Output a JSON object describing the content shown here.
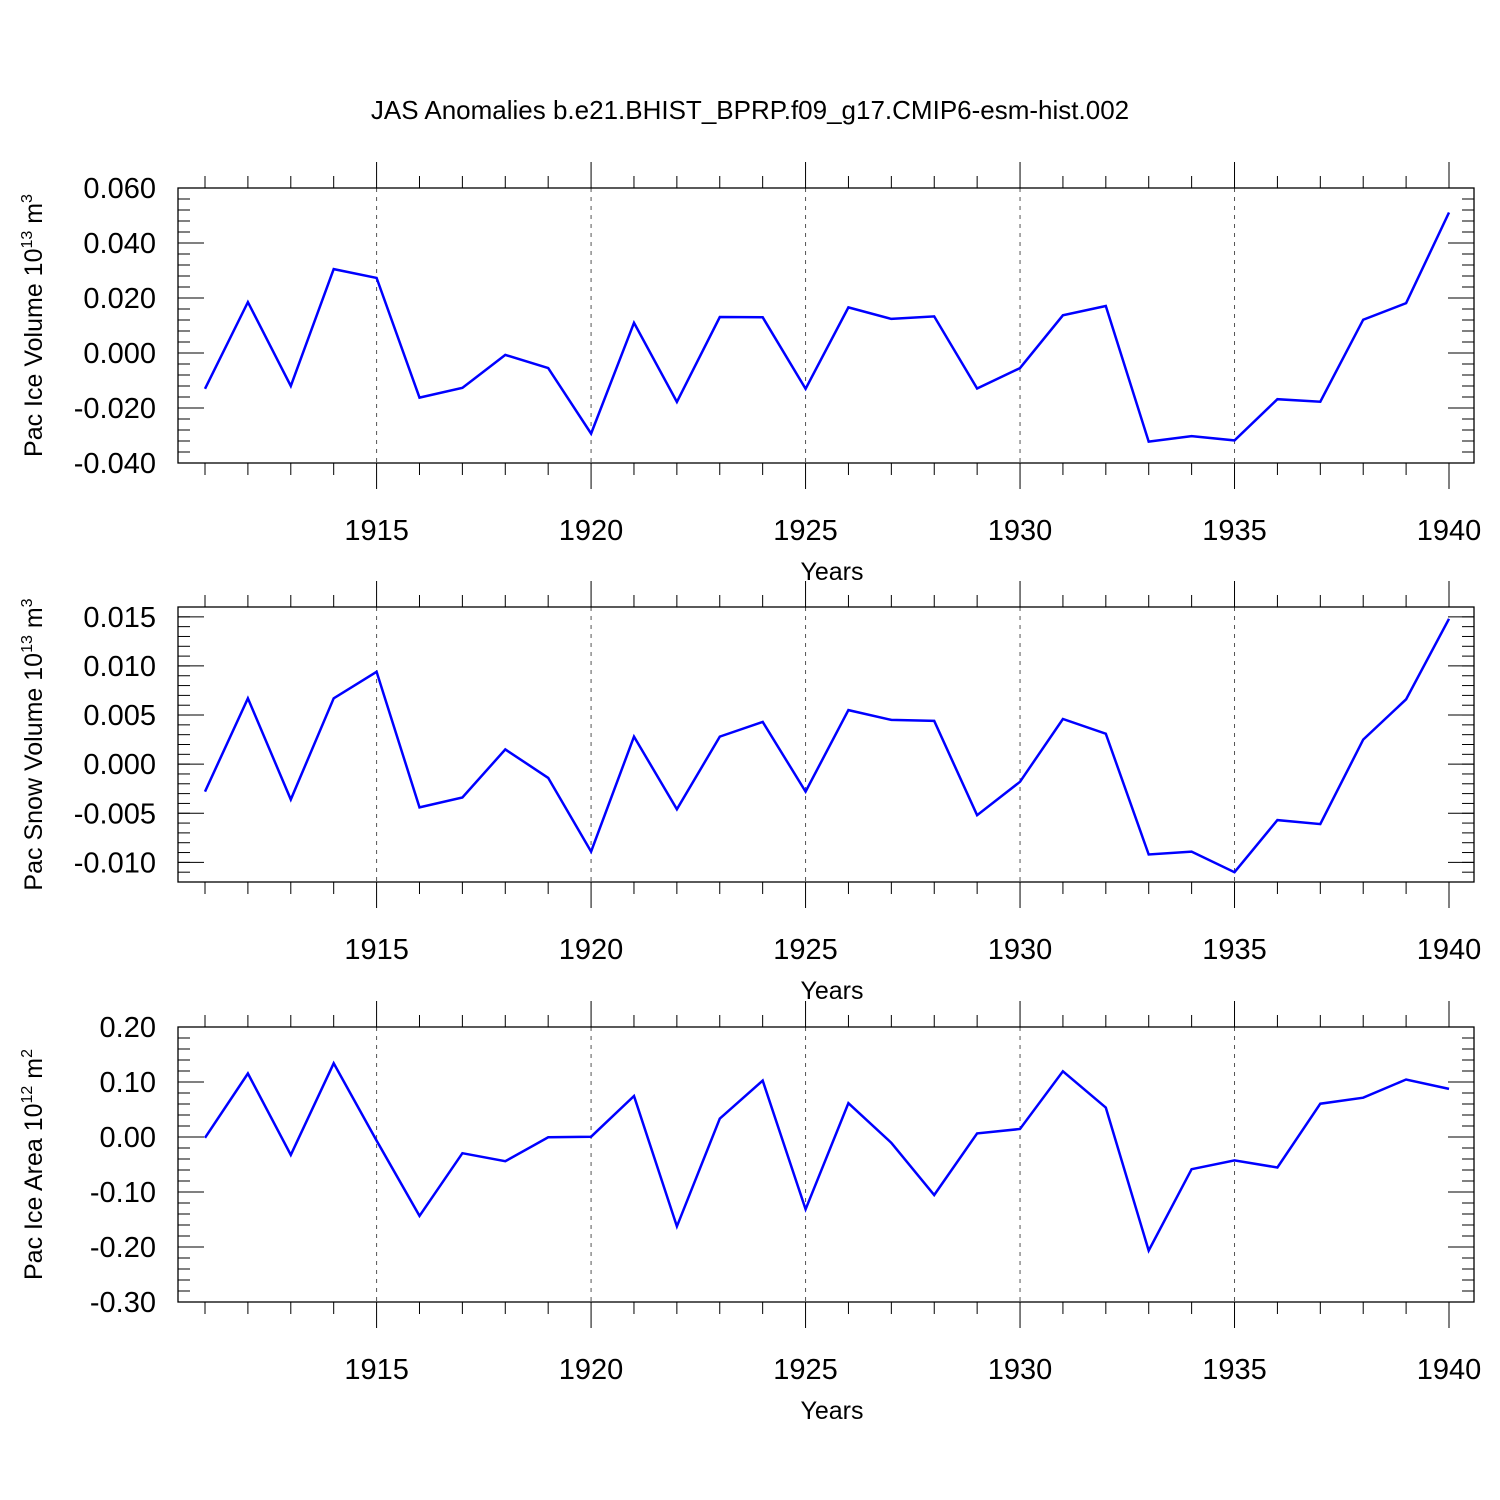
{
  "title": "JAS Anomalies b.e21.BHIST_BPRP.f09_g17.CMIP6-esm-hist.002",
  "colors": {
    "series": "#0000ff",
    "axis": "#000000",
    "grid": "#555555"
  },
  "chart_data": [
    {
      "type": "line",
      "ylabel": "Pac Ice Volume 10",
      "ylabel_exp": "13",
      "ylabel_unit": " m",
      "ylabel_unit_exp": "3",
      "xlabel": "Years",
      "xlim": [
        1911,
        1940
      ],
      "ylim": [
        -0.04,
        0.06
      ],
      "yticks": [
        -0.04,
        -0.02,
        0.0,
        0.02,
        0.04,
        0.06
      ],
      "yticklabels": [
        "-0.040",
        "-0.020",
        "0.000",
        "0.020",
        "0.040",
        "0.060"
      ],
      "yminor_step": 0.004,
      "xticks": [
        1915,
        1920,
        1925,
        1930,
        1935,
        1940
      ],
      "xticklabels": [
        "1915",
        "1920",
        "1925",
        "1930",
        "1935",
        "1940"
      ],
      "gridlines_x": [
        1915,
        1920,
        1925,
        1930,
        1935
      ],
      "x": [
        1911,
        1912,
        1913,
        1914,
        1915,
        1916,
        1917,
        1918,
        1919,
        1920,
        1921,
        1922,
        1923,
        1924,
        1925,
        1926,
        1927,
        1928,
        1929,
        1930,
        1931,
        1932,
        1933,
        1934,
        1935,
        1936,
        1937,
        1938,
        1939,
        1940
      ],
      "values": [
        -0.013,
        0.0185,
        -0.012,
        0.0305,
        0.0273,
        -0.0162,
        -0.0127,
        -0.0007,
        -0.0055,
        -0.0293,
        0.011,
        -0.0178,
        0.0131,
        0.013,
        -0.013,
        0.0166,
        0.0124,
        0.0133,
        -0.0129,
        -0.0055,
        0.0137,
        0.0171,
        -0.0322,
        -0.0302,
        -0.0318,
        -0.0168,
        -0.0177,
        0.0121,
        0.0181,
        0.0511
      ]
    },
    {
      "type": "line",
      "ylabel": "Pac Snow Volume 10",
      "ylabel_exp": "13",
      "ylabel_unit": " m",
      "ylabel_unit_exp": "3",
      "xlabel": "Years",
      "xlim": [
        1911,
        1940
      ],
      "ylim": [
        -0.012,
        0.016
      ],
      "yticks": [
        -0.01,
        -0.005,
        0.0,
        0.005,
        0.01,
        0.015
      ],
      "yticklabels": [
        "-0.010",
        "-0.005",
        "0.000",
        "0.005",
        "0.010",
        "0.015"
      ],
      "yminor_step": 0.001,
      "xticks": [
        1915,
        1920,
        1925,
        1930,
        1935,
        1940
      ],
      "xticklabels": [
        "1915",
        "1920",
        "1925",
        "1930",
        "1935",
        "1940"
      ],
      "gridlines_x": [
        1915,
        1920,
        1925,
        1930,
        1935
      ],
      "x": [
        1911,
        1912,
        1913,
        1914,
        1915,
        1916,
        1917,
        1918,
        1919,
        1920,
        1921,
        1922,
        1923,
        1924,
        1925,
        1926,
        1927,
        1928,
        1929,
        1930,
        1931,
        1932,
        1933,
        1934,
        1935,
        1936,
        1937,
        1938,
        1939,
        1940
      ],
      "values": [
        -0.0028,
        0.0067,
        -0.0036,
        0.0067,
        0.0094,
        -0.0044,
        -0.0034,
        0.0015,
        -0.0014,
        -0.0089,
        0.0028,
        -0.0046,
        0.0028,
        0.0043,
        -0.0028,
        0.0055,
        0.0045,
        0.0044,
        -0.0052,
        -0.0018,
        0.0046,
        0.0031,
        -0.0092,
        -0.0089,
        -0.011,
        -0.0057,
        -0.0061,
        0.0025,
        0.0066,
        0.0148
      ]
    },
    {
      "type": "line",
      "ylabel": "Pac Ice Area 10",
      "ylabel_exp": "12",
      "ylabel_unit": " m",
      "ylabel_unit_exp": "2",
      "xlabel": "Years",
      "xlim": [
        1911,
        1940
      ],
      "ylim": [
        -0.3,
        0.2
      ],
      "yticks": [
        -0.3,
        -0.2,
        -0.1,
        0.0,
        0.1,
        0.2
      ],
      "yticklabels": [
        "-0.30",
        "-0.20",
        "-0.10",
        "0.00",
        "0.10",
        "0.20"
      ],
      "yminor_step": 0.02,
      "xticks": [
        1915,
        1920,
        1925,
        1930,
        1935,
        1940
      ],
      "xticklabels": [
        "1915",
        "1920",
        "1925",
        "1930",
        "1935",
        "1940"
      ],
      "gridlines_x": [
        1915,
        1920,
        1925,
        1930,
        1935
      ],
      "x": [
        1911,
        1912,
        1913,
        1914,
        1915,
        1916,
        1917,
        1918,
        1919,
        1920,
        1921,
        1922,
        1923,
        1924,
        1925,
        1926,
        1927,
        1928,
        1929,
        1930,
        1931,
        1932,
        1933,
        1934,
        1935,
        1936,
        1937,
        1938,
        1939,
        1940
      ],
      "values": [
        -0.0015,
        0.1155,
        -0.0325,
        0.134,
        -0.0065,
        -0.1435,
        -0.0295,
        -0.044,
        -0.0005,
        0.0005,
        0.0745,
        -0.1625,
        0.0335,
        0.1025,
        -0.1315,
        0.0615,
        -0.0105,
        -0.1055,
        0.0065,
        0.0145,
        0.1195,
        0.0535,
        -0.2065,
        -0.0585,
        -0.0425,
        -0.0555,
        0.0605,
        0.0715,
        0.1045,
        0.0875
      ]
    }
  ]
}
